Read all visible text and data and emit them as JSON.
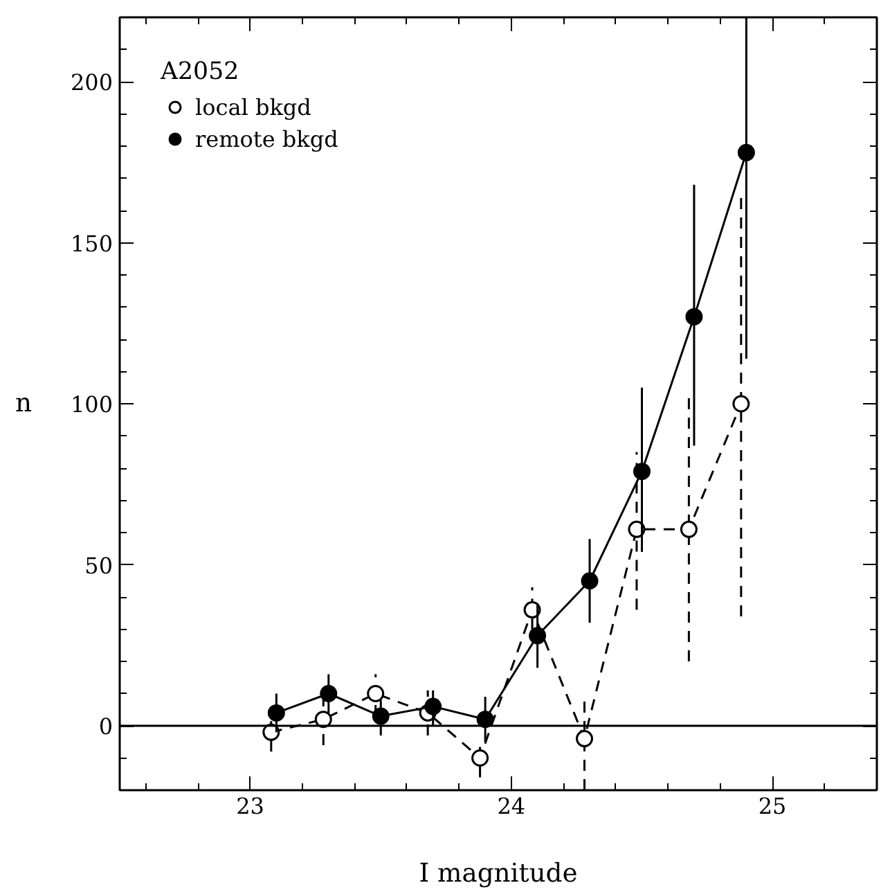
{
  "chart_data": {
    "type": "line",
    "xlabel": "I magnitude",
    "ylabel": "n",
    "legend_title": "A2052",
    "legend": "top left",
    "grid": false,
    "xlim": [
      22.5,
      25.4
    ],
    "xticks": [
      23,
      24,
      25
    ],
    "ylim": [
      -20,
      220
    ],
    "yticks": [
      0,
      50,
      100,
      150,
      200
    ],
    "ref_lines": [
      {
        "axis": "y",
        "value": 0,
        "label": null
      }
    ],
    "series": [
      {
        "name": "local bkgd",
        "color": "#000000",
        "marker": "circle_open",
        "line_style": "dashed",
        "x": [
          23.08,
          23.28,
          23.48,
          23.68,
          23.88,
          24.08,
          24.28,
          24.48,
          24.68,
          24.88
        ],
        "values": [
          -2,
          2,
          10,
          4,
          -10,
          36,
          -4,
          61,
          61,
          100
        ],
        "errors": [
          [
            -8,
            4
          ],
          [
            -6,
            10
          ],
          [
            3,
            16
          ],
          [
            -3,
            11
          ],
          [
            -16,
            -4
          ],
          [
            30,
            43
          ],
          [
            -20,
            8
          ],
          [
            36,
            85
          ],
          [
            20,
            102
          ],
          [
            34,
            164
          ]
        ]
      },
      {
        "name": "remote bkgd",
        "color": "#000000",
        "marker": "circle",
        "line_style": "solid",
        "x": [
          23.1,
          23.3,
          23.5,
          23.7,
          23.9,
          24.1,
          24.3,
          24.5,
          24.7,
          24.9
        ],
        "values": [
          4,
          10,
          3,
          6,
          2,
          28,
          45,
          79,
          127,
          178
        ],
        "errors": [
          [
            -2,
            10
          ],
          [
            4,
            16
          ],
          [
            -3,
            8
          ],
          [
            0,
            11
          ],
          [
            -5,
            9
          ],
          [
            18,
            38
          ],
          [
            32,
            58
          ],
          [
            54,
            105
          ],
          [
            87,
            168
          ],
          [
            114,
            220
          ]
        ]
      }
    ]
  }
}
